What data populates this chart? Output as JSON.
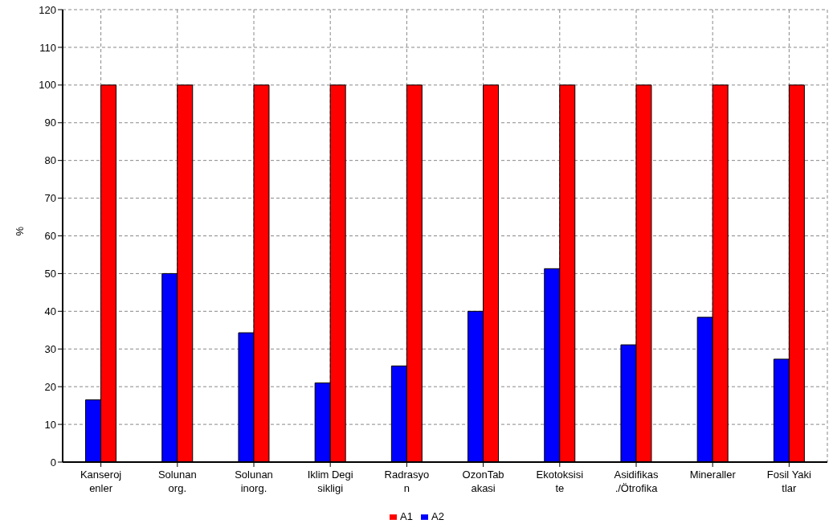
{
  "chart_data": {
    "type": "bar",
    "ylabel": "%",
    "categories": [
      "Kanseroj\nenler",
      "Solunan\norg.",
      "Solunan\ninorg.",
      "Iklim Degi\nsikligi",
      "Radrasyo\nn",
      "OzonTab\nakasi",
      "Ekotoksisi\nte",
      "Asidifikas\n./Ötrofika",
      "Mineraller",
      "Fosil Yaki\ntlar"
    ],
    "series": [
      {
        "name": "A2",
        "color": "#0000ff",
        "values": [
          16.5,
          50,
          34.3,
          21,
          25.5,
          40,
          51.3,
          31.1,
          38.4,
          27.3
        ]
      },
      {
        "name": "A1",
        "color": "#ff0000",
        "values": [
          100,
          100,
          100,
          100,
          100,
          100,
          100,
          100,
          100,
          100
        ]
      }
    ],
    "ylim": [
      0,
      120
    ],
    "yticks": [
      0,
      10,
      20,
      30,
      40,
      50,
      60,
      70,
      80,
      90,
      100,
      110,
      120
    ],
    "grid": true,
    "legend": "bottom"
  }
}
